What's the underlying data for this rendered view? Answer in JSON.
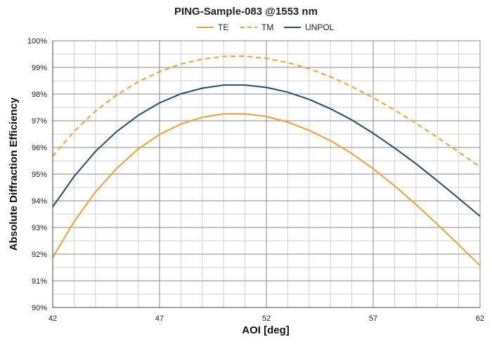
{
  "chart_data": {
    "type": "line",
    "title": "PING-Sample-083 @1553 nm",
    "xlabel": "AOI [deg]",
    "ylabel": "Absolute Diffraction Efficiency",
    "xlim": [
      42,
      62
    ],
    "ylim": [
      90,
      100
    ],
    "x_ticks": [
      42,
      47,
      52,
      57,
      62
    ],
    "y_ticks": [
      "90%",
      "91%",
      "92%",
      "93%",
      "94%",
      "95%",
      "96%",
      "97%",
      "98%",
      "99%",
      "100%"
    ],
    "grid": true,
    "legend_position": "top",
    "x": [
      42,
      43,
      44,
      45,
      46,
      47,
      48,
      49,
      50,
      51,
      52,
      53,
      54,
      55,
      56,
      57,
      58,
      59,
      60,
      61,
      62
    ],
    "series": [
      {
        "name": "TE",
        "color": "#f0a030",
        "dash": "solid",
        "values": [
          91.87,
          93.22,
          94.33,
          95.22,
          95.94,
          96.49,
          96.88,
          97.13,
          97.26,
          97.26,
          97.16,
          96.95,
          96.64,
          96.25,
          95.77,
          95.2,
          94.56,
          93.86,
          93.12,
          92.35,
          91.57
        ]
      },
      {
        "name": "TM",
        "color": "#f0a030",
        "dash": "dashed",
        "values": [
          95.67,
          96.6,
          97.36,
          97.97,
          98.46,
          98.84,
          99.13,
          99.31,
          99.41,
          99.42,
          99.34,
          99.18,
          98.95,
          98.65,
          98.28,
          97.86,
          97.4,
          96.91,
          96.38,
          95.83,
          95.27
        ]
      },
      {
        "name": "UNPOL",
        "color": "#1f4e6e",
        "dash": "solid",
        "values": [
          93.77,
          94.91,
          95.85,
          96.6,
          97.2,
          97.67,
          98.01,
          98.22,
          98.34,
          98.34,
          98.25,
          98.07,
          97.8,
          97.45,
          97.03,
          96.53,
          95.98,
          95.39,
          94.75,
          94.09,
          93.42
        ]
      }
    ]
  }
}
